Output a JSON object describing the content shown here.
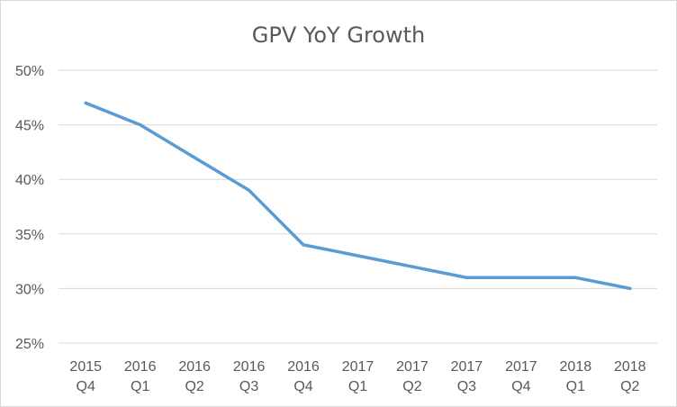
{
  "chart_data": {
    "type": "line",
    "title": "GPV YoY Growth",
    "xlabel": "",
    "ylabel": "",
    "categories": [
      [
        "2015",
        "Q4"
      ],
      [
        "2016",
        "Q1"
      ],
      [
        "2016",
        "Q2"
      ],
      [
        "2016",
        "Q3"
      ],
      [
        "2016",
        "Q4"
      ],
      [
        "2017",
        "Q1"
      ],
      [
        "2017",
        "Q2"
      ],
      [
        "2017",
        "Q3"
      ],
      [
        "2017",
        "Q4"
      ],
      [
        "2018",
        "Q1"
      ],
      [
        "2018",
        "Q2"
      ]
    ],
    "series": [
      {
        "color": "#5b9bd5",
        "values": [
          47,
          45,
          42,
          39,
          34,
          33,
          32,
          31,
          31,
          31,
          30
        ]
      }
    ],
    "ylim": [
      25,
      50
    ],
    "yticks": [
      25,
      30,
      35,
      40,
      45,
      50
    ],
    "ytick_suffix": "%",
    "grid": true,
    "legend": "none"
  }
}
